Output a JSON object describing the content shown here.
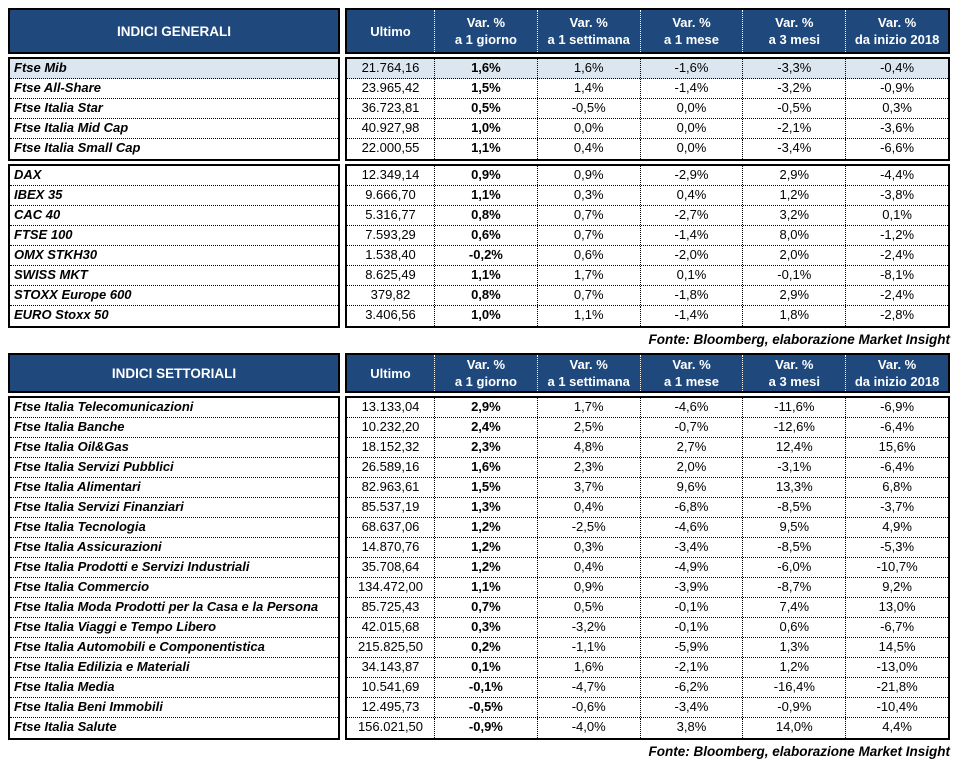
{
  "colors": {
    "header_bg": "#1F497D",
    "header_fg": "#FFFFFF",
    "highlight_row_bg": "#DCE6F1",
    "border": "#000000"
  },
  "columns": [
    {
      "key": "ultimo",
      "line1": "Ultimo",
      "line2": ""
    },
    {
      "key": "var-1-giorno",
      "line1": "Var. %",
      "line2": "a 1 giorno"
    },
    {
      "key": "var-1-settimana",
      "line1": "Var. %",
      "line2": "a 1 settimana"
    },
    {
      "key": "var-1-mese",
      "line1": "Var. %",
      "line2": "a 1 mese"
    },
    {
      "key": "var-3-mesi",
      "line1": "Var. %",
      "line2": "a 3 mesi"
    },
    {
      "key": "var-da-inizio-2018",
      "line1": "Var. %",
      "line2": "da inizio 2018"
    }
  ],
  "tables": [
    {
      "title": "INDICI GENERALI",
      "source": "Fonte: Bloomberg, elaborazione Market Insight",
      "blocks": [
        {
          "rows": [
            {
              "name": "Ftse Mib",
              "highlight": true,
              "values": [
                "21.764,16",
                "1,6%",
                "1,6%",
                "-1,6%",
                "-3,3%",
                "-0,4%"
              ]
            },
            {
              "name": "Ftse All-Share",
              "values": [
                "23.965,42",
                "1,5%",
                "1,4%",
                "-1,4%",
                "-3,2%",
                "-0,9%"
              ]
            },
            {
              "name": "Ftse Italia Star",
              "values": [
                "36.723,81",
                "0,5%",
                "-0,5%",
                "0,0%",
                "-0,5%",
                "0,3%"
              ]
            },
            {
              "name": "Ftse Italia Mid Cap",
              "values": [
                "40.927,98",
                "1,0%",
                "0,0%",
                "0,0%",
                "-2,1%",
                "-3,6%"
              ]
            },
            {
              "name": "Ftse Italia Small Cap",
              "values": [
                "22.000,55",
                "1,1%",
                "0,4%",
                "0,0%",
                "-3,4%",
                "-6,6%"
              ]
            }
          ]
        },
        {
          "rows": [
            {
              "name": "DAX",
              "values": [
                "12.349,14",
                "0,9%",
                "0,9%",
                "-2,9%",
                "2,9%",
                "-4,4%"
              ]
            },
            {
              "name": "IBEX 35",
              "values": [
                "9.666,70",
                "1,1%",
                "0,3%",
                "0,4%",
                "1,2%",
                "-3,8%"
              ]
            },
            {
              "name": "CAC 40",
              "values": [
                "5.316,77",
                "0,8%",
                "0,7%",
                "-2,7%",
                "3,2%",
                "0,1%"
              ]
            },
            {
              "name": "FTSE 100",
              "values": [
                "7.593,29",
                "0,6%",
                "0,7%",
                "-1,4%",
                "8,0%",
                "-1,2%"
              ]
            },
            {
              "name": "OMX STKH30",
              "values": [
                "1.538,40",
                "-0,2%",
                "0,6%",
                "-2,0%",
                "2,0%",
                "-2,4%"
              ]
            },
            {
              "name": "SWISS MKT",
              "values": [
                "8.625,49",
                "1,1%",
                "1,7%",
                "0,1%",
                "-0,1%",
                "-8,1%"
              ]
            },
            {
              "name": "STOXX Europe 600",
              "values": [
                "379,82",
                "0,8%",
                "0,7%",
                "-1,8%",
                "2,9%",
                "-2,4%"
              ]
            },
            {
              "name": "EURO Stoxx 50",
              "values": [
                "3.406,56",
                "1,0%",
                "1,1%",
                "-1,4%",
                "1,8%",
                "-2,8%"
              ]
            }
          ]
        }
      ]
    },
    {
      "title": "INDICI SETTORIALI",
      "source": "Fonte: Bloomberg, elaborazione Market Insight",
      "blocks": [
        {
          "rows": [
            {
              "name": "Ftse Italia Telecomunicazioni",
              "values": [
                "13.133,04",
                "2,9%",
                "1,7%",
                "-4,6%",
                "-11,6%",
                "-6,9%"
              ]
            },
            {
              "name": "Ftse Italia Banche",
              "values": [
                "10.232,20",
                "2,4%",
                "2,5%",
                "-0,7%",
                "-12,6%",
                "-6,4%"
              ]
            },
            {
              "name": "Ftse Italia Oil&Gas",
              "values": [
                "18.152,32",
                "2,3%",
                "4,8%",
                "2,7%",
                "12,4%",
                "15,6%"
              ]
            },
            {
              "name": "Ftse Italia Servizi Pubblici",
              "values": [
                "26.589,16",
                "1,6%",
                "2,3%",
                "2,0%",
                "-3,1%",
                "-6,4%"
              ]
            },
            {
              "name": "Ftse Italia Alimentari",
              "values": [
                "82.963,61",
                "1,5%",
                "3,7%",
                "9,6%",
                "13,3%",
                "6,8%"
              ]
            },
            {
              "name": "Ftse Italia Servizi Finanziari",
              "values": [
                "85.537,19",
                "1,3%",
                "0,4%",
                "-6,8%",
                "-8,5%",
                "-3,7%"
              ]
            },
            {
              "name": "Ftse Italia Tecnologia",
              "values": [
                "68.637,06",
                "1,2%",
                "-2,5%",
                "-4,6%",
                "9,5%",
                "4,9%"
              ]
            },
            {
              "name": "Ftse Italia Assicurazioni",
              "values": [
                "14.870,76",
                "1,2%",
                "0,3%",
                "-3,4%",
                "-8,5%",
                "-5,3%"
              ]
            },
            {
              "name": "Ftse Italia Prodotti e Servizi Industriali",
              "values": [
                "35.708,64",
                "1,2%",
                "0,4%",
                "-4,9%",
                "-6,0%",
                "-10,7%"
              ]
            },
            {
              "name": "Ftse Italia Commercio",
              "values": [
                "134.472,00",
                "1,1%",
                "0,9%",
                "-3,9%",
                "-8,7%",
                "9,2%"
              ]
            },
            {
              "name": "Ftse Italia Moda Prodotti per la Casa e la Persona",
              "values": [
                "85.725,43",
                "0,7%",
                "0,5%",
                "-0,1%",
                "7,4%",
                "13,0%"
              ]
            },
            {
              "name": "Ftse Italia Viaggi e Tempo Libero",
              "values": [
                "42.015,68",
                "0,3%",
                "-3,2%",
                "-0,1%",
                "0,6%",
                "-6,7%"
              ]
            },
            {
              "name": "Ftse Italia Automobili e Componentistica",
              "values": [
                "215.825,50",
                "0,2%",
                "-1,1%",
                "-5,9%",
                "1,3%",
                "14,5%"
              ]
            },
            {
              "name": "Ftse Italia Edilizia e Materiali",
              "values": [
                "34.143,87",
                "0,1%",
                "1,6%",
                "-2,1%",
                "1,2%",
                "-13,0%"
              ]
            },
            {
              "name": "Ftse Italia Media",
              "values": [
                "10.541,69",
                "-0,1%",
                "-4,7%",
                "-6,2%",
                "-16,4%",
                "-21,8%"
              ]
            },
            {
              "name": "Ftse Italia Beni Immobili",
              "values": [
                "12.495,73",
                "-0,5%",
                "-0,6%",
                "-3,4%",
                "-0,9%",
                "-10,4%"
              ]
            },
            {
              "name": "Ftse Italia Salute",
              "values": [
                "156.021,50",
                "-0,9%",
                "-4,0%",
                "3,8%",
                "14,0%",
                "4,4%"
              ]
            }
          ]
        }
      ]
    }
  ]
}
